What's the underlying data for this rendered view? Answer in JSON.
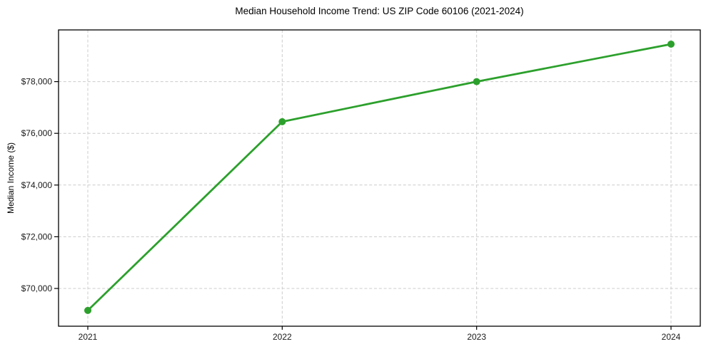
{
  "chart_data": {
    "type": "line",
    "title": "Median Household Income Trend: US ZIP Code 60106 (2021-2024)",
    "xlabel": "",
    "ylabel": "Median Income ($)",
    "categories": [
      "2021",
      "2022",
      "2023",
      "2024"
    ],
    "values": [
      69150,
      76450,
      78000,
      79450
    ],
    "yticks": [
      70000,
      72000,
      74000,
      76000,
      78000
    ],
    "ytick_labels": [
      "$70,000",
      "$72,000",
      "$74,000",
      "$76,000",
      "$78,000"
    ],
    "ylim": [
      68540,
      80000
    ],
    "grid": true,
    "grid_style": "dashed",
    "legend_position": "none",
    "marker": "circle",
    "colors": {
      "line": "#2ca02c",
      "marker": "#2ca02c",
      "grid": "#cccccc",
      "axis": "#000000",
      "tick_text": "#1a1a1a",
      "background": "#ffffff"
    }
  }
}
